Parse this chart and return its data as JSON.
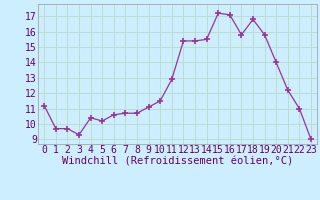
{
  "x": [
    0,
    1,
    2,
    3,
    4,
    5,
    6,
    7,
    8,
    9,
    10,
    11,
    12,
    13,
    14,
    15,
    16,
    17,
    18,
    19,
    20,
    21,
    22,
    23
  ],
  "y": [
    11.2,
    9.7,
    9.7,
    9.3,
    10.4,
    10.2,
    10.6,
    10.7,
    10.7,
    11.1,
    11.5,
    12.9,
    15.4,
    15.4,
    15.5,
    17.2,
    17.1,
    15.8,
    16.8,
    15.8,
    14.0,
    12.2,
    11.0,
    9.0
  ],
  "line_color": "#993399",
  "marker": "+",
  "marker_size": 5,
  "bg_color": "#cceeff",
  "grid_color": "#bbddcc",
  "xlabel": "Windchill (Refroidissement éolien,°C)",
  "xlabel_color": "#660066",
  "xlabel_fontsize": 7.5,
  "tick_label_color": "#660066",
  "tick_fontsize": 7,
  "ylim": [
    8.7,
    17.8
  ],
  "yticks": [
    9,
    10,
    11,
    12,
    13,
    14,
    15,
    16,
    17
  ],
  "xticks": [
    0,
    1,
    2,
    3,
    4,
    5,
    6,
    7,
    8,
    9,
    10,
    11,
    12,
    13,
    14,
    15,
    16,
    17,
    18,
    19,
    20,
    21,
    22,
    23
  ]
}
